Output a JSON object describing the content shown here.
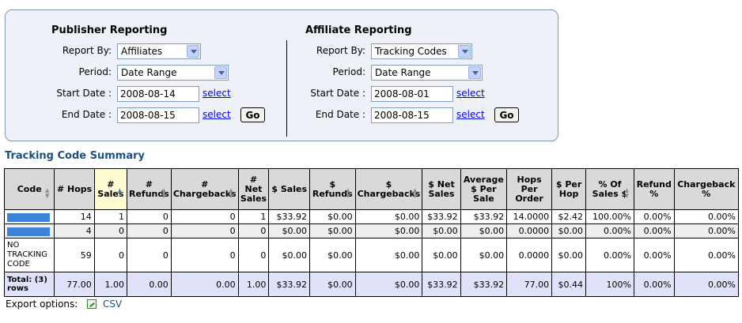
{
  "publisher": {
    "title": "Publisher Reporting",
    "report_by_label": "Report By:",
    "report_by_value": "Affiliates",
    "period_label": "Period:",
    "period_value": "Date Range",
    "start_label": "Start Date :",
    "start_value": "2008-08-14",
    "end_label": "End Date :",
    "end_value": "2008-08-15",
    "select_label": "select",
    "go_label": "Go"
  },
  "affiliate": {
    "title": "Affiliate Reporting",
    "report_by_label": "Report By:",
    "report_by_value": "Tracking Codes",
    "period_label": "Period:",
    "period_value": "Date Range",
    "start_label": "Start Date :",
    "start_value": "2008-08-01",
    "end_label": "End Date :",
    "end_value": "2008-08-15",
    "select_label": "select",
    "go_label": "Go"
  },
  "summary": {
    "title": "Tracking Code Summary",
    "columns": [
      "Code",
      "# Hops",
      "# Sales",
      "# Refunds",
      "# Chargebacks",
      "# Net Sales",
      "$ Sales",
      "$ Refunds",
      "$ Chargebacks",
      "$ Net Sales",
      "Average $ Per Sale",
      "Hops Per Order",
      "$ Per Hop",
      "% Of Sales $",
      "Refund %",
      "Chargeback %"
    ],
    "rows": [
      {
        "code": "",
        "cells": [
          "14",
          "1",
          "0",
          "0",
          "1",
          "$33.92",
          "$0.00",
          "$0.00",
          "$33.92",
          "$33.92",
          "14.0000",
          "$2.42",
          "100.00%",
          "0.00%",
          "0.00%"
        ]
      },
      {
        "code": "",
        "cells": [
          "4",
          "0",
          "0",
          "0",
          "0",
          "$0.00",
          "$0.00",
          "$0.00",
          "$0.00",
          "$0.00",
          "0.0000",
          "$0.00",
          "0.00%",
          "0.00%",
          "0.00%"
        ]
      },
      {
        "code": "NO TRACKING CODE",
        "cells": [
          "59",
          "0",
          "0",
          "0",
          "0",
          "$0.00",
          "$0.00",
          "$0.00",
          "$0.00",
          "$0.00",
          "0.0000",
          "$0.00",
          "0.00%",
          "0.00%",
          "0.00%"
        ]
      }
    ],
    "total": {
      "label": "Total: (3) rows",
      "cells": [
        "77.00",
        "1.00",
        "0.00",
        "0.00",
        "1.00",
        "$33.92",
        "$0.00",
        "$0.00",
        "$33.92",
        "$33.92",
        "77.00",
        "$0.44",
        "100%",
        "0.00%",
        "0.00%"
      ]
    }
  },
  "export": {
    "label": "Export options:",
    "csv_label": "CSV"
  },
  "colors": {
    "panel_bg": "#eef1f7",
    "panel_border": "#8396b5",
    "heading": "#1d5080",
    "sorted_header": "#fffcd4",
    "total_row": "#e0e2fa",
    "code_bar": "#3b83d7"
  }
}
